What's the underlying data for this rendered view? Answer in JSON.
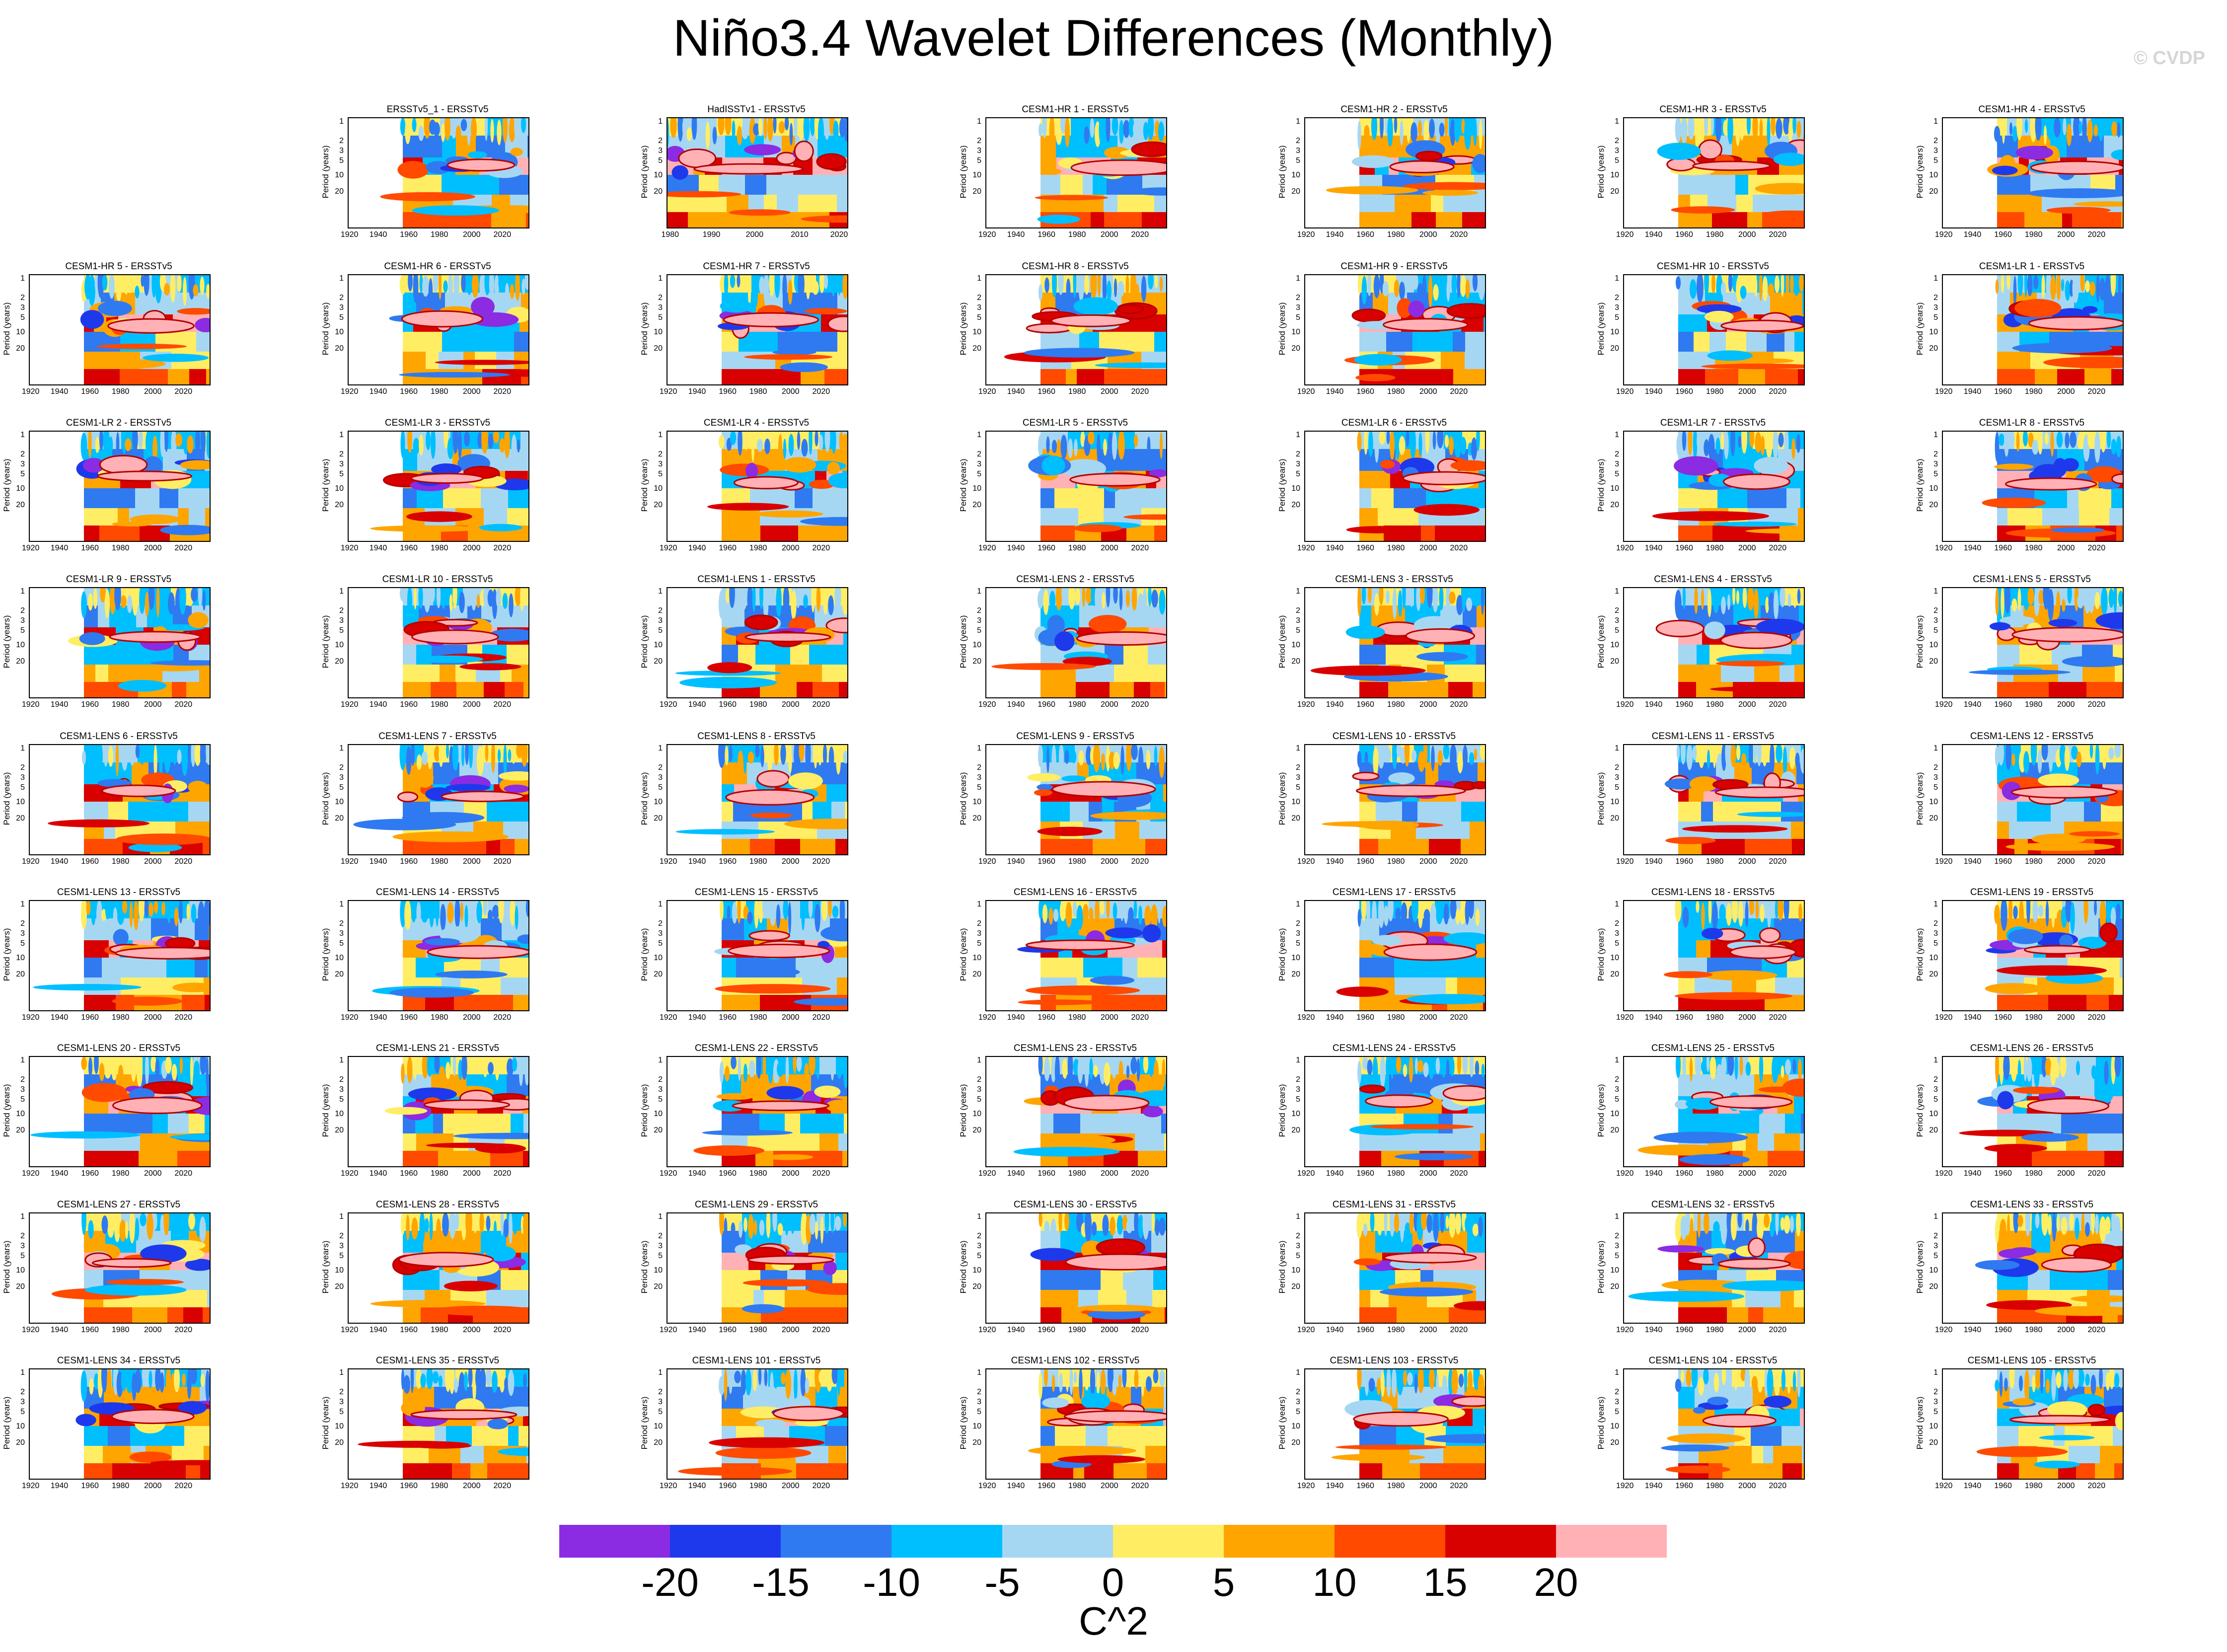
{
  "title": "Niño3.4 Wavelet Differences (Monthly)",
  "watermark": "© CVDP",
  "chart_data": {
    "type": "heatmap",
    "ylabel": "Period (years)",
    "yticks": [
      "1",
      "2",
      "3",
      "5",
      "10",
      "20"
    ],
    "xticks_standard": [
      "1920",
      "1940",
      "1960",
      "1980",
      "2000",
      "2020"
    ],
    "xticks_hadisst": [
      "1980",
      "1990",
      "2000",
      "2010",
      "2020"
    ],
    "colorbar": {
      "colors": [
        "#8b2be2",
        "#1e39ec",
        "#2f7af0",
        "#00bfff",
        "#a6d7f2",
        "#ffee63",
        "#ffa500",
        "#ff4a00",
        "#d90000",
        "#ffb1b5"
      ],
      "labels": [
        "-20",
        "-15",
        "-10",
        "-5",
        "0",
        "5",
        "10",
        "15",
        "20"
      ],
      "units": "C^2"
    },
    "panels": [
      "ERSSTv5_1 - ERSSTv5",
      "HadISSTv1 - ERSSTv5",
      "CESM1-HR 1 - ERSSTv5",
      "CESM1-HR 2 - ERSSTv5",
      "CESM1-HR 3 - ERSSTv5",
      "CESM1-HR 4 - ERSSTv5",
      "CESM1-HR 5 - ERSSTv5",
      "CESM1-HR 6 - ERSSTv5",
      "CESM1-HR 7 - ERSSTv5",
      "CESM1-HR 8 - ERSSTv5",
      "CESM1-HR 9 - ERSSTv5",
      "CESM1-HR 10 - ERSSTv5",
      "CESM1-LR 1 - ERSSTv5",
      "CESM1-LR 2 - ERSSTv5",
      "CESM1-LR 3 - ERSSTv5",
      "CESM1-LR 4 - ERSSTv5",
      "CESM1-LR 5 - ERSSTv5",
      "CESM1-LR 6 - ERSSTv5",
      "CESM1-LR 7 - ERSSTv5",
      "CESM1-LR 8 - ERSSTv5",
      "CESM1-LR 9 - ERSSTv5",
      "CESM1-LR 10 - ERSSTv5",
      "CESM1-LENS 1 - ERSSTv5",
      "CESM1-LENS 2 - ERSSTv5",
      "CESM1-LENS 3 - ERSSTv5",
      "CESM1-LENS 4 - ERSSTv5",
      "CESM1-LENS 5 - ERSSTv5",
      "CESM1-LENS 6 - ERSSTv5",
      "CESM1-LENS 7 - ERSSTv5",
      "CESM1-LENS 8 - ERSSTv5",
      "CESM1-LENS 9 - ERSSTv5",
      "CESM1-LENS 10 - ERSSTv5",
      "CESM1-LENS 11 - ERSSTv5",
      "CESM1-LENS 12 - ERSSTv5",
      "CESM1-LENS 13 - ERSSTv5",
      "CESM1-LENS 14 - ERSSTv5",
      "CESM1-LENS 15 - ERSSTv5",
      "CESM1-LENS 16 - ERSSTv5",
      "CESM1-LENS 17 - ERSSTv5",
      "CESM1-LENS 18 - ERSSTv5",
      "CESM1-LENS 19 - ERSSTv5",
      "CESM1-LENS 20 - ERSSTv5",
      "CESM1-LENS 21 - ERSSTv5",
      "CESM1-LENS 22 - ERSSTv5",
      "CESM1-LENS 23 - ERSSTv5",
      "CESM1-LENS 24 - ERSSTv5",
      "CESM1-LENS 25 - ERSSTv5",
      "CESM1-LENS 26 - ERSSTv5",
      "CESM1-LENS 27 - ERSSTv5",
      "CESM1-LENS 28 - ERSSTv5",
      "CESM1-LENS 29 - ERSSTv5",
      "CESM1-LENS 30 - ERSSTv5",
      "CESM1-LENS 31 - ERSSTv5",
      "CESM1-LENS 32 - ERSSTv5",
      "CESM1-LENS 33 - ERSSTv5",
      "CESM1-LENS 34 - ERSSTv5",
      "CESM1-LENS 35 - ERSSTv5",
      "CESM1-LENS 101 - ERSSTv5",
      "CESM1-LENS 102 - ERSSTv5",
      "CESM1-LENS 103 - ERSSTv5",
      "CESM1-LENS 104 - ERSSTv5",
      "CESM1-LENS 105 - ERSSTv5"
    ]
  }
}
